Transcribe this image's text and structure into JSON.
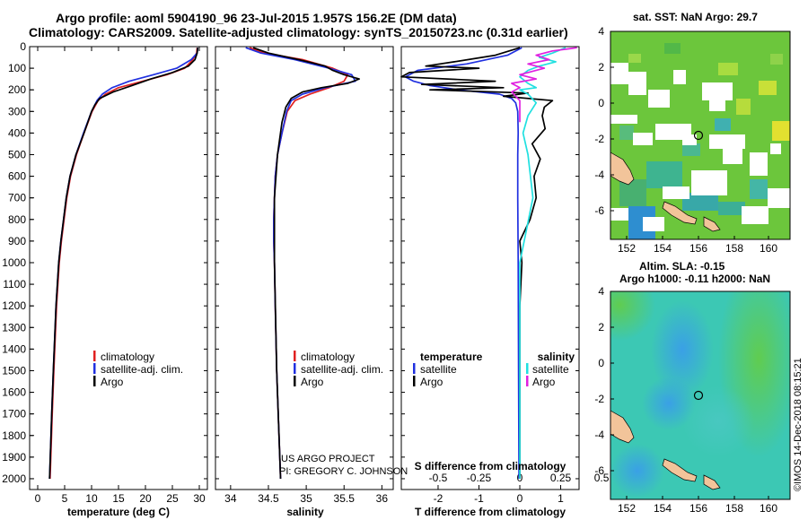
{
  "header": {
    "title_line1": "Argo profile: aoml 5904190_96 23-Jul-2015 1.957S 156.2E (DM data)",
    "title_line2": "Climatology: CARS2009. Satellite-adjusted climatology: synTS_20150723.nc (0.31d earlier)"
  },
  "colors": {
    "climatology": "#e02020",
    "satellite_adj": "#2030e0",
    "argo": "#000000",
    "satellite_salinity": "#20e0e0",
    "argo_salinity": "#e020e0"
  },
  "depth_axis": {
    "range": [
      0,
      2050
    ],
    "ticks": [
      0,
      100,
      200,
      300,
      400,
      500,
      600,
      700,
      800,
      900,
      1000,
      1100,
      1200,
      1300,
      1400,
      1500,
      1600,
      1700,
      1800,
      1900,
      2000
    ]
  },
  "chart_data": [
    {
      "type": "line",
      "id": "temperature",
      "xlabel": "temperature (deg C)",
      "xlim": [
        -1.5,
        31.5
      ],
      "xticks": [
        0,
        5,
        10,
        15,
        20,
        25,
        30
      ],
      "legend": [
        "climatology",
        "satellite-adj. clim.",
        "Argo"
      ],
      "series": [
        {
          "name": "climatology",
          "depth": [
            5,
            30,
            60,
            100,
            130,
            160,
            190,
            220,
            250,
            300,
            400,
            500,
            600,
            700,
            800,
            900,
            1000,
            1200,
            1500,
            1700,
            2000
          ],
          "values": [
            29.6,
            29.5,
            28.8,
            27.3,
            24.0,
            19.5,
            15.0,
            12.6,
            11.2,
            10.1,
            8.6,
            7.2,
            6.1,
            5.4,
            4.9,
            4.4,
            4.0,
            3.5,
            3.0,
            2.7,
            2.3
          ]
        },
        {
          "name": "satellite-adj. clim.",
          "depth": [
            5,
            30,
            60,
            100,
            130,
            160,
            190,
            220,
            250,
            300,
            400,
            500,
            600,
            700,
            800,
            900,
            1000,
            1200,
            1500,
            1700,
            2000
          ],
          "values": [
            29.7,
            29.6,
            28.5,
            25.8,
            21.5,
            17.0,
            13.8,
            12.0,
            11.0,
            10.0,
            8.5,
            7.1,
            6.0,
            5.3,
            4.8,
            4.3,
            3.9,
            3.4,
            2.9,
            2.6,
            2.2
          ]
        },
        {
          "name": "Argo",
          "depth": [
            5,
            30,
            60,
            90,
            120,
            150,
            180,
            210,
            240,
            270,
            300,
            400,
            500,
            600,
            700,
            800,
            900,
            1000,
            1200,
            1500,
            1700,
            2000
          ],
          "values": [
            29.7,
            29.6,
            29.2,
            28.0,
            25.0,
            21.0,
            17.5,
            14.0,
            11.5,
            10.6,
            10.0,
            8.6,
            7.1,
            6.0,
            5.3,
            4.8,
            4.3,
            3.9,
            3.4,
            2.9,
            2.6,
            2.2
          ]
        }
      ]
    },
    {
      "type": "line",
      "id": "salinity",
      "xlabel": "salinity",
      "xlim": [
        33.8,
        36.15
      ],
      "xticks": [
        34,
        34.5,
        35,
        35.5,
        36
      ],
      "legend": [
        "climatology",
        "satellite-adj. clim.",
        "Argo"
      ],
      "series": [
        {
          "name": "climatology",
          "depth": [
            5,
            30,
            60,
            100,
            130,
            160,
            190,
            220,
            250,
            300,
            400,
            500,
            600,
            700,
            800,
            900,
            1000,
            1200,
            1500,
            2000
          ],
          "values": [
            34.25,
            34.45,
            34.95,
            35.35,
            35.55,
            35.5,
            35.3,
            35.05,
            34.85,
            34.75,
            34.68,
            34.62,
            34.59,
            34.58,
            34.57,
            34.57,
            34.58,
            34.59,
            34.61,
            34.66
          ]
        },
        {
          "name": "satellite-adj. clim.",
          "depth": [
            5,
            30,
            60,
            100,
            130,
            160,
            190,
            220,
            250,
            300,
            400,
            500,
            600,
            700,
            800,
            900,
            1000,
            1200,
            1500,
            2000
          ],
          "values": [
            34.2,
            34.4,
            34.85,
            35.3,
            35.6,
            35.65,
            35.25,
            34.95,
            34.8,
            34.74,
            34.68,
            34.62,
            34.59,
            34.58,
            34.57,
            34.57,
            34.58,
            34.59,
            34.61,
            34.66
          ]
        },
        {
          "name": "Argo",
          "depth": [
            5,
            30,
            60,
            90,
            110,
            130,
            150,
            170,
            190,
            210,
            240,
            280,
            350,
            500,
            700,
            1000,
            1500,
            2000
          ],
          "values": [
            34.3,
            34.5,
            34.9,
            35.25,
            35.35,
            35.5,
            35.7,
            35.55,
            35.2,
            34.95,
            34.8,
            34.73,
            34.68,
            34.62,
            34.58,
            34.58,
            34.61,
            34.66
          ]
        }
      ]
    },
    {
      "type": "line",
      "id": "difference",
      "xlabel": "T difference from climatology",
      "xlabel_top": "S difference from climatology",
      "xlim": [
        -2.9,
        1.45
      ],
      "xticks": [
        -2,
        -1,
        0,
        1
      ],
      "xticks_top": [
        "-0.5",
        "-0.25",
        "0",
        "0.25",
        "0.5"
      ],
      "legend_left_title": "temperature",
      "legend_right_title": "salinity",
      "legend": [
        "satellite",
        "Argo",
        "satellite",
        "Argo"
      ],
      "series": [
        {
          "name": "temperature satellite",
          "depth": [
            5,
            40,
            80,
            110,
            140,
            160,
            180,
            200,
            220,
            240,
            260,
            300,
            400,
            500,
            700,
            1000,
            1500,
            2000
          ],
          "values": [
            0.05,
            -0.3,
            -1.3,
            -2.5,
            -2.8,
            -2.6,
            -2.2,
            -1.5,
            -0.5,
            -0.2,
            -0.1,
            -0.05,
            -0.04,
            -0.05,
            -0.05,
            -0.04,
            -0.03,
            -0.02
          ]
        },
        {
          "name": "temperature Argo",
          "depth": [
            5,
            40,
            70,
            90,
            100,
            120,
            140,
            160,
            175,
            190,
            200,
            215,
            230,
            250,
            280,
            320,
            380,
            450,
            520,
            600,
            700,
            800,
            900,
            1000,
            1200,
            1500,
            2000
          ],
          "values": [
            0.0,
            -0.6,
            -1.6,
            -2.3,
            -1.0,
            -2.7,
            -2.9,
            -0.6,
            -2.4,
            -0.4,
            -2.2,
            0.2,
            -0.4,
            0.8,
            0.6,
            0.55,
            0.62,
            0.3,
            0.5,
            0.35,
            0.4,
            0.25,
            0.0,
            0.05,
            0.0,
            0.0,
            0.0
          ]
        },
        {
          "name": "salinity satellite",
          "depth": [
            5,
            30,
            50,
            70,
            90,
            110,
            140,
            170,
            190,
            200,
            220,
            260,
            320,
            400,
            500,
            700,
            1000,
            1500,
            2000
          ],
          "values": [
            0.28,
            0.2,
            0.12,
            0.22,
            0.12,
            0.05,
            0.0,
            0.05,
            0.1,
            0.0,
            0.05,
            0.1,
            0.05,
            0.02,
            0.05,
            0.08,
            0.0,
            0.0,
            0.0
          ]
        },
        {
          "name": "salinity Argo",
          "depth": [
            5,
            20,
            40,
            60,
            80,
            100,
            130,
            150,
            170,
            190,
            210,
            250,
            300,
            350
          ],
          "values": [
            0.35,
            0.2,
            0.1,
            0.18,
            0.05,
            0.15,
            0.0,
            0.1,
            -0.05,
            0.0,
            -0.05,
            0.0,
            0.0,
            0.0
          ]
        }
      ]
    }
  ],
  "maps": {
    "sst": {
      "title": "sat. SST: NaN Argo: 29.7",
      "lon_ticks": [
        "152",
        "154",
        "156",
        "158",
        "160"
      ],
      "lat_ticks": [
        "4",
        "2",
        "0",
        "-2",
        "-4",
        "-6"
      ]
    },
    "sla": {
      "title_line1": "Altim. SLA: -0.15",
      "title_line2": "Argo h1000: -0.11 h2000: NaN",
      "lon_ticks": [
        "152",
        "154",
        "156",
        "158",
        "160"
      ],
      "lat_ticks": [
        "4",
        "2",
        "0",
        "-2",
        "-4",
        "-6"
      ]
    }
  },
  "credits": {
    "line1": "US ARGO PROJECT",
    "line2": "PI: GREGORY C. JOHNSON"
  },
  "stamp": "©IMOS 14-Dec-2018 08:15:21"
}
